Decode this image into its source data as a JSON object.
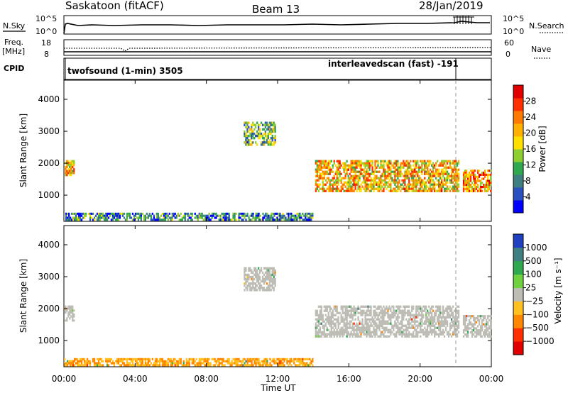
{
  "header": {
    "station": "Saskatoon (fitACF)",
    "beam": "Beam 13",
    "date": "28/Jan/2019"
  },
  "top_panels": {
    "nsky_label": "N.Sky",
    "nsky_ticks": [
      "10^5",
      "10^0"
    ],
    "nsearch_label": "N.Search",
    "nsearch_ticks": [
      "10^5",
      "10^0"
    ],
    "freq_label_1": "Freq.",
    "freq_label_2": "[MHz]",
    "freq_ticks": [
      "18",
      "8"
    ],
    "nave_label": "Nave",
    "nave_ticks": [
      "60",
      "0"
    ],
    "cpid_label": "CPID",
    "cpid_1": "twofsound (1-min) 3505",
    "cpid_2": "interleavedscan (fast) -191"
  },
  "axes": {
    "ylabel": "Slant Range [km]",
    "xlabel": "Time UT",
    "y_ticks": [
      "4000",
      "3000",
      "2000",
      "1000"
    ],
    "x_ticks": [
      "00:00",
      "04:00",
      "08:00",
      "12:00",
      "16:00",
      "20:00",
      "00:00"
    ]
  },
  "colorbars": {
    "power": {
      "label": "Power [dB]",
      "ticks": [
        "28",
        "24",
        "20",
        "16",
        "12",
        "8",
        "4"
      ],
      "colors": [
        "#0000ff",
        "#2a4fbf",
        "#3f7f7f",
        "#2fa84f",
        "#8fce30",
        "#ffe000",
        "#ffb000",
        "#ff7a00",
        "#ff3000",
        "#e00000"
      ]
    },
    "velocity": {
      "label": "Velocity [m s⁻¹]",
      "ticks": [
        "1000",
        "500",
        "100",
        "25",
        "−25",
        "−100",
        "−500",
        "−1000"
      ],
      "colors": [
        "#2040c0",
        "#3f7f7f",
        "#2fa84f",
        "#6fd040",
        "#bdbdb5",
        "#ffc020",
        "#ff8800",
        "#ff3000",
        "#e00000"
      ]
    }
  },
  "chart_data": [
    {
      "type": "heatmap",
      "title": "Power",
      "x_range_hours": [
        0,
        24
      ],
      "y_range_km": [
        180,
        4600
      ],
      "colorbar_range_db": [
        0,
        32
      ],
      "echo_regions": [
        {
          "t_start": 0.05,
          "t_end": 0.6,
          "r_low": 1600,
          "r_high": 2100,
          "power_db": 20
        },
        {
          "t_start": 0.0,
          "t_end": 14.0,
          "r_low": 200,
          "r_high": 450,
          "power_db": 8
        },
        {
          "t_start": 10.1,
          "t_end": 11.9,
          "r_low": 2550,
          "r_high": 3300,
          "power_db": 12
        },
        {
          "t_start": 14.1,
          "t_end": 22.2,
          "r_low": 1100,
          "r_high": 2100,
          "power_db": 20
        },
        {
          "t_start": 22.4,
          "t_end": 24.0,
          "r_low": 1100,
          "r_high": 1800,
          "power_db": 22
        }
      ]
    },
    {
      "type": "heatmap",
      "title": "Velocity",
      "x_range_hours": [
        0,
        24
      ],
      "y_range_km": [
        180,
        4600
      ],
      "colorbar_range_ms": [
        -1000,
        1000
      ],
      "echo_regions": [
        {
          "t_start": 0.05,
          "t_end": 0.6,
          "r_low": 1600,
          "r_high": 2100,
          "velocity_ms": 0
        },
        {
          "t_start": 0.0,
          "t_end": 14.0,
          "r_low": 200,
          "r_high": 450,
          "velocity_ms": -100
        },
        {
          "t_start": 10.1,
          "t_end": 11.9,
          "r_low": 2550,
          "r_high": 3300,
          "velocity_ms": 0
        },
        {
          "t_start": 14.1,
          "t_end": 22.2,
          "r_low": 1100,
          "r_high": 2100,
          "velocity_ms": 0
        },
        {
          "t_start": 22.4,
          "t_end": 24.0,
          "r_low": 1100,
          "r_high": 1800,
          "velocity_ms": 0
        }
      ]
    }
  ]
}
